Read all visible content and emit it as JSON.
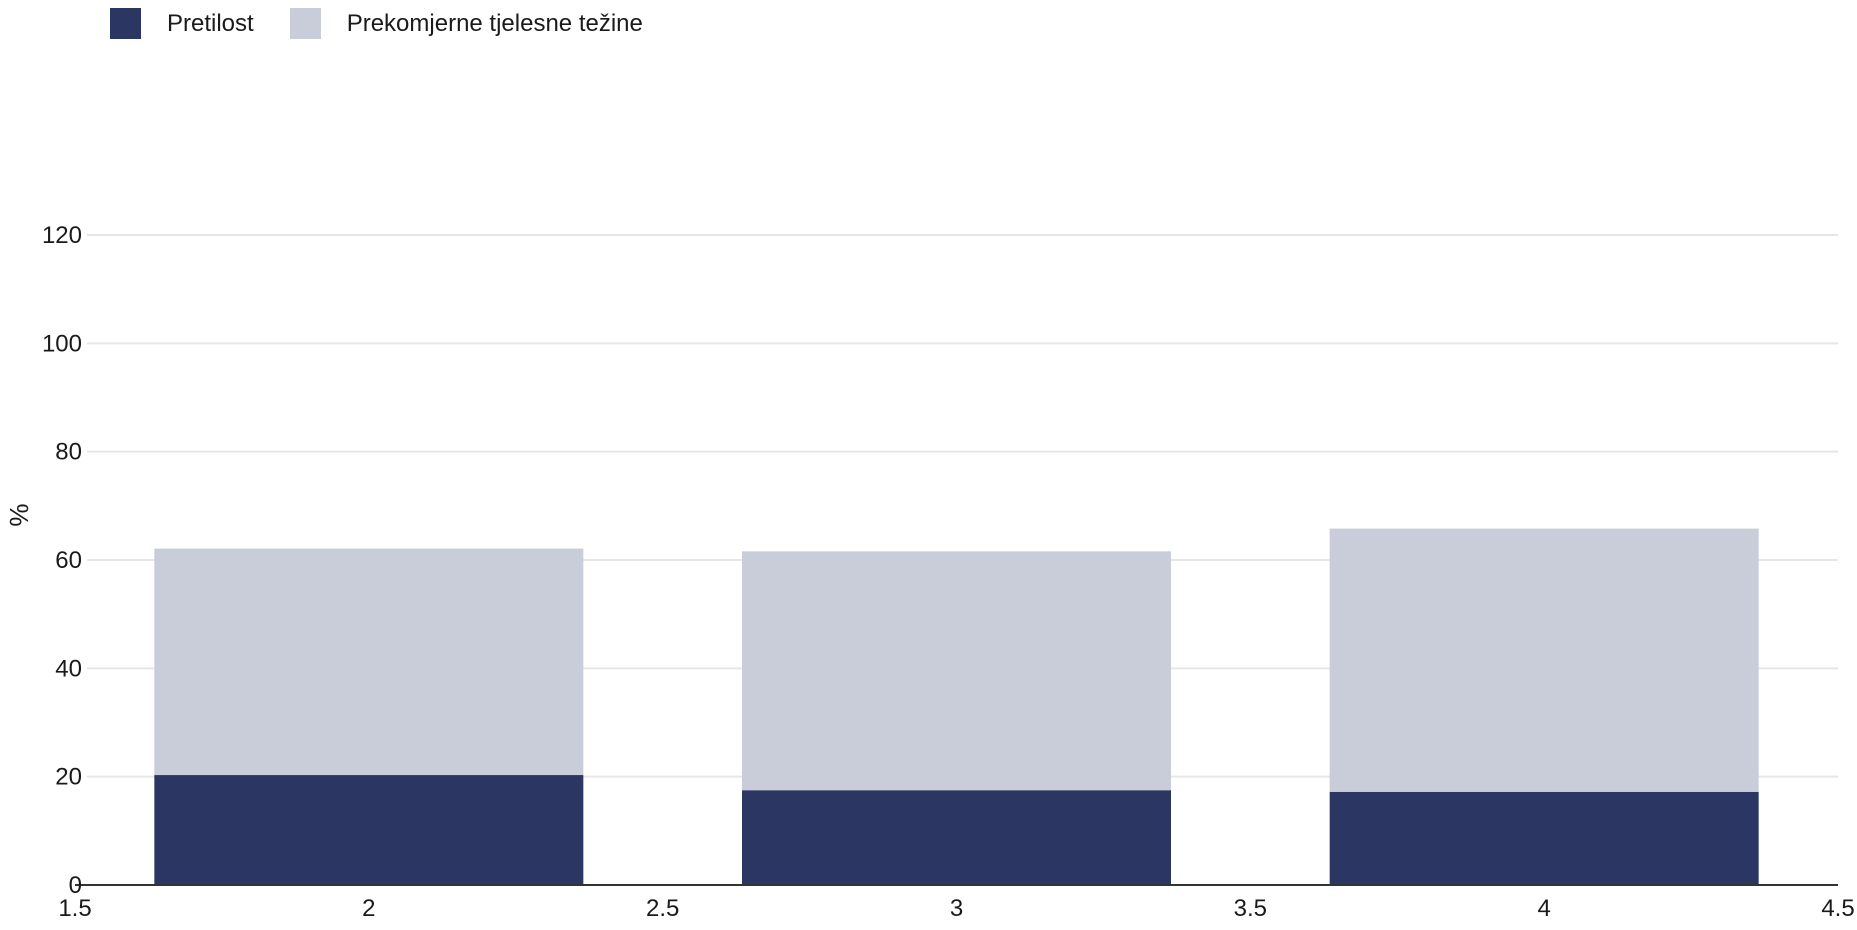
{
  "chart_data": {
    "type": "bar",
    "stacked": true,
    "x": [
      2,
      3,
      4
    ],
    "series": [
      {
        "name": "Pretilost",
        "values": [
          20.3,
          17.5,
          17.2
        ],
        "color": "#2b3663"
      },
      {
        "name": "Prekomjerne tjelesne težine",
        "values": [
          41.8,
          44.1,
          48.6
        ],
        "color": "#c9ccd9"
      }
    ],
    "xlim": [
      1.5,
      4.5
    ],
    "ylim": [
      0,
      120
    ],
    "xticks": [
      1.5,
      2,
      2.5,
      3,
      3.5,
      4,
      4.5
    ],
    "yticks": [
      0,
      20,
      40,
      60,
      80,
      100,
      120
    ],
    "ylabel": "%",
    "grid": true,
    "legend_position": "top-left"
  }
}
